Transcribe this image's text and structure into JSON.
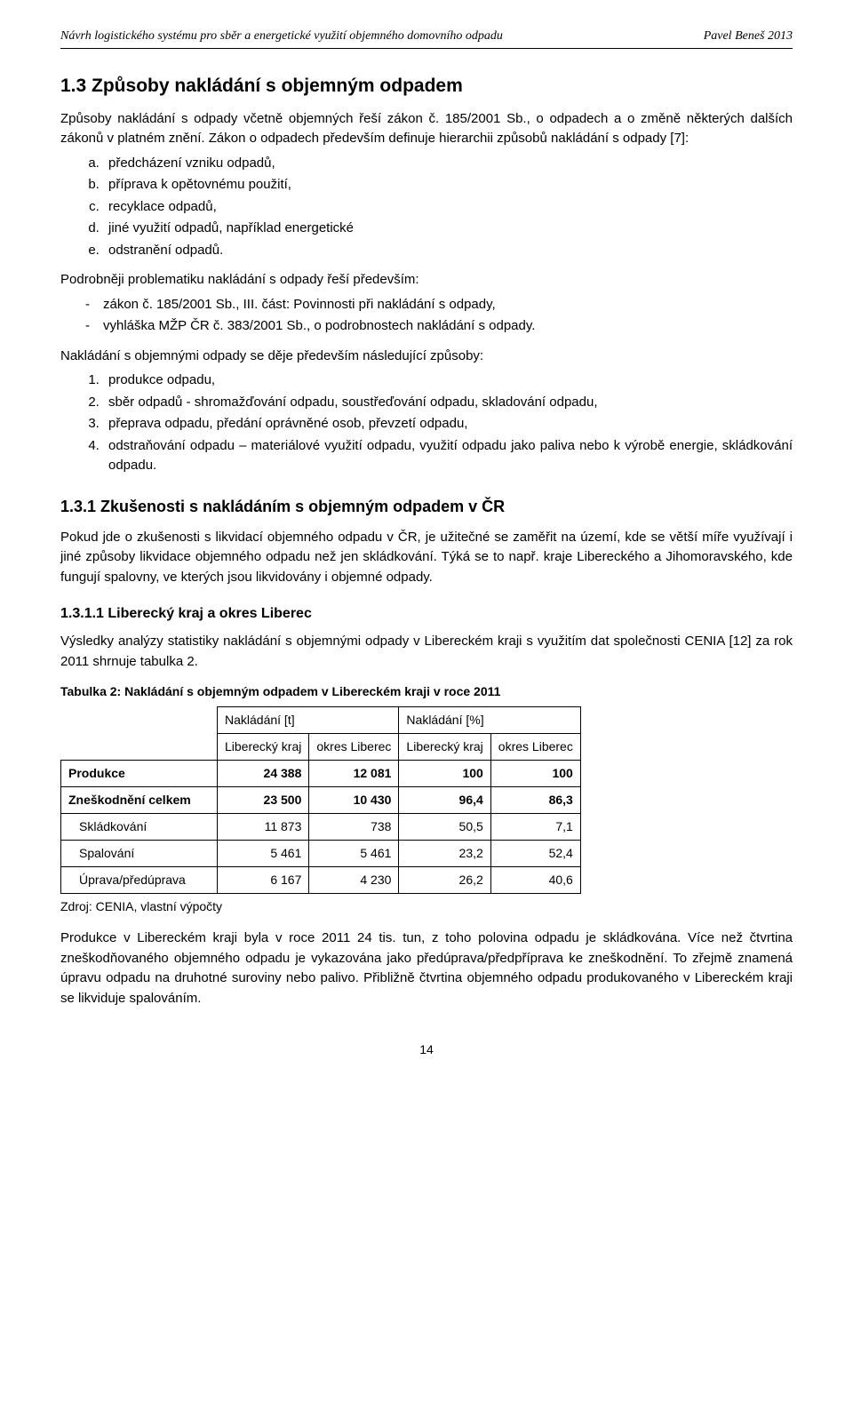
{
  "header": {
    "left": "Návrh logistického systému pro sběr a energetické využití objemného domovního odpadu",
    "right": "Pavel Beneš  2013"
  },
  "section": {
    "number_title": "1.3  Způsoby nakládání s objemným odpadem",
    "p1": "Způsoby nakládání s odpady včetně objemných řeší zákon č. 185/2001 Sb., o odpadech a o změně některých dalších zákonů v platném znění. Zákon o odpadech především definuje hierarchii způsobů nakládání s odpady [7]:",
    "alpha": [
      "předcházení vzniku odpadů,",
      "příprava k opětovnému použití,",
      "recyklace odpadů,",
      "jiné využití odpadů, například energetické",
      "odstranění odpadů."
    ],
    "p2": "Podrobněji problematiku nakládání s odpady řeší především:",
    "dash": [
      "zákon č. 185/2001 Sb., III. část: Povinnosti při nakládání s odpady,",
      "vyhláška MŽP ČR č. 383/2001 Sb., o podrobnostech nakládání s odpady."
    ],
    "p3": "Nakládání s objemnými odpady se děje především následující způsoby:",
    "num": [
      "produkce odpadu,",
      "sběr odpadů - shromažďování odpadu, soustřeďování odpadu, skladování odpadu,",
      "přeprava odpadu, předání oprávněné osob, převzetí odpadu,",
      "odstraňování odpadu – materiálové využití odpadu, využití odpadu jako paliva nebo k výrobě energie, skládkování odpadu."
    ]
  },
  "sub": {
    "title": "1.3.1  Zkušenosti s nakládáním s objemným odpadem v ČR",
    "p1": "Pokud jde o zkušenosti s likvidací objemného odpadu v ČR, je užitečné se zaměřit na území, kde se větší míře využívají i jiné způsoby likvidace objemného odpadu než jen skládkování. Týká se to např. kraje Libereckého a Jihomoravského, kde fungují spalovny, ve kterých jsou likvidovány i objemné odpady."
  },
  "sub2": {
    "title": "1.3.1.1  Liberecký kraj a okres Liberec",
    "p1": "Výsledky analýzy statistiky nakládání s objemnými odpady v Libereckém kraji s využitím dat společnosti CENIA [12] za rok 2011 shrnuje tabulka 2."
  },
  "table": {
    "caption": "Tabulka 2: Nakládání s objemným odpadem v Libereckém kraji v roce 2011",
    "group_headers": [
      "Nakládání [t]",
      "Nakládání [%]"
    ],
    "sub_headers": [
      "Liberecký kraj",
      "okres Liberec",
      "Liberecký kraj",
      "okres Liberec"
    ],
    "rows": [
      {
        "label": "Produkce",
        "bold": true,
        "indent": false,
        "vals": [
          "24 388",
          "12 081",
          "100",
          "100"
        ]
      },
      {
        "label": "Zneškodnění celkem",
        "bold": true,
        "indent": false,
        "vals": [
          "23 500",
          "10 430",
          "96,4",
          "86,3"
        ]
      },
      {
        "label": "Skládkování",
        "bold": false,
        "indent": true,
        "vals": [
          "11 873",
          "738",
          "50,5",
          "7,1"
        ]
      },
      {
        "label": "Spalování",
        "bold": false,
        "indent": true,
        "vals": [
          "5 461",
          "5 461",
          "23,2",
          "52,4"
        ]
      },
      {
        "label": "Úprava/předúprava",
        "bold": false,
        "indent": true,
        "vals": [
          "6 167",
          "4 230",
          "26,2",
          "40,6"
        ]
      }
    ],
    "source": "Zdroj: CENIA, vlastní výpočty"
  },
  "closing": "Produkce v Libereckém kraji byla v roce 2011 24 tis. tun, z toho polovina odpadu je skládkována. Více než čtvrtina zneškodňovaného objemného odpadu je vykazována jako předúprava/předpříprava ke zneškodnění. To zřejmě znamená úpravu odpadu na druhotné suroviny nebo palivo. Přibližně čtvrtina objemného odpadu produkovaného v Libereckém kraji se likviduje spalováním.",
  "page_number": "14"
}
